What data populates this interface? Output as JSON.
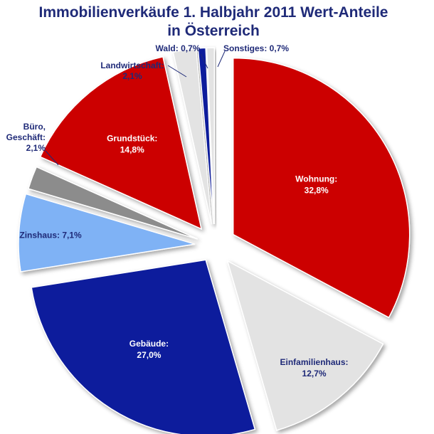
{
  "chart_data": {
    "type": "pie",
    "title_lines": [
      "Immobilienverkäufe 1. Halbjahr 2011 Wert-Anteile",
      "in Österreich"
    ],
    "slices": [
      {
        "key": "wohnung",
        "name": "Wohnung",
        "value": 32.8,
        "label_lines": [
          "Wohnung:",
          "32,8%"
        ],
        "color": "#cc0000",
        "text_color": "#ffffff",
        "label_pos": "inside"
      },
      {
        "key": "einfamilienhaus",
        "name": "Einfamilienhaus",
        "value": 12.7,
        "label_lines": [
          "Einfamilienhaus:",
          "12,7%"
        ],
        "color": "#e3e3e3",
        "text_color": "#1f2a78",
        "label_pos": "inside"
      },
      {
        "key": "gebaeude",
        "name": "Gebäude",
        "value": 27.0,
        "label_lines": [
          "Gebäude:",
          "27,0%"
        ],
        "color": "#0a1a9c",
        "text_color": "#ffffff",
        "label_pos": "inside"
      },
      {
        "key": "zinshaus",
        "name": "Zinshaus",
        "value": 7.1,
        "label_lines": [
          "Zinshaus: 7,1%"
        ],
        "color": "#7fb2f5",
        "text_color": "#1f2a78",
        "label_pos": "inside"
      },
      {
        "key": "buero",
        "name": "Büro, Geschäft",
        "value": 2.1,
        "label_lines": [
          "Büro,",
          "Geschäft:",
          "2,1%"
        ],
        "color": "#8c8c8c",
        "text_color": "#1f2a78",
        "label_pos": "outside"
      },
      {
        "key": "grundstueck",
        "name": "Grundstück",
        "value": 14.8,
        "label_lines": [
          "Grundstück:",
          "14,8%"
        ],
        "color": "#cc0000",
        "text_color": "#ffffff",
        "label_pos": "inside"
      },
      {
        "key": "landwirtschaft",
        "name": "Landwirtschaft",
        "value": 2.1,
        "label_lines": [
          "Landwirtschaft:",
          "2,1%"
        ],
        "color": "#e3e3e3",
        "text_color": "#1f2a78",
        "label_pos": "outside"
      },
      {
        "key": "wald",
        "name": "Wald",
        "value": 0.7,
        "label_lines": [
          "Wald: 0,7%"
        ],
        "color": "#0a1a9c",
        "text_color": "#1f2a78",
        "label_pos": "outside"
      },
      {
        "key": "sonstiges",
        "name": "Sonstiges",
        "value": 0.7,
        "label_lines": [
          "Sonstiges: 0,7%"
        ],
        "color": "#e3e3e3",
        "text_color": "#1f2a78",
        "label_pos": "outside"
      }
    ],
    "legend": "none",
    "start_angle_deg": 0,
    "direction": "clockwise",
    "exploded": true
  }
}
